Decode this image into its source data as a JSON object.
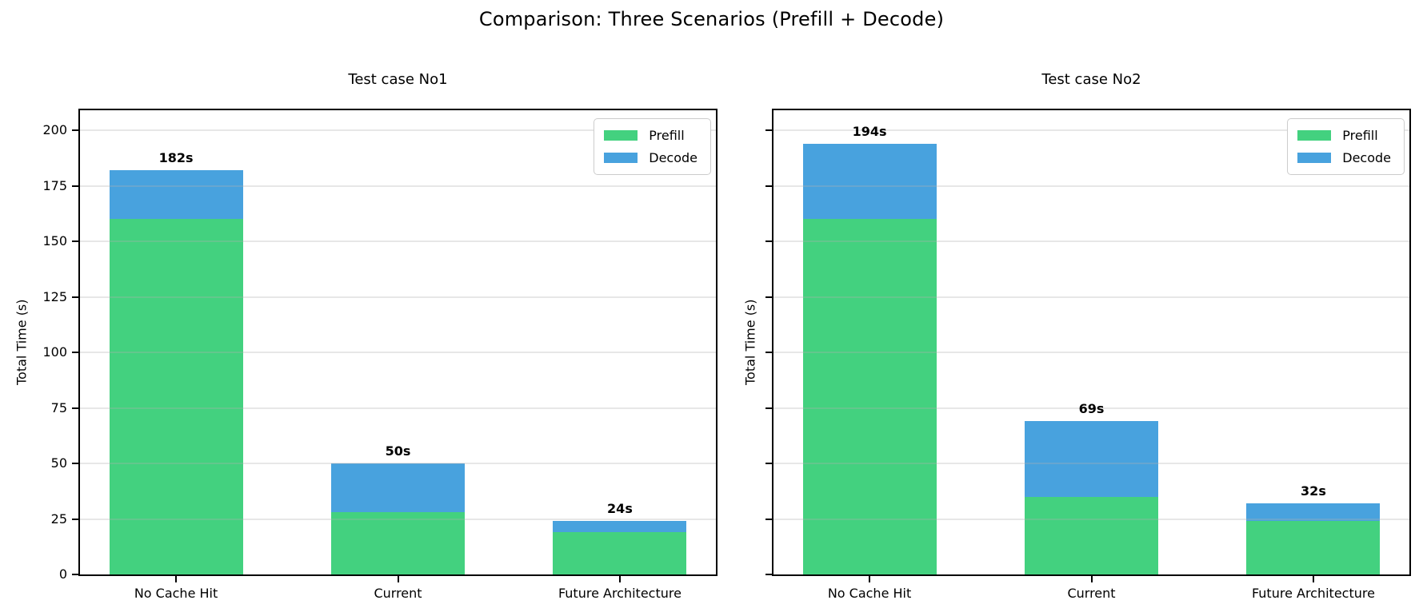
{
  "figure": {
    "title": "Comparison: Three Scenarios (Prefill + Decode)"
  },
  "colors": {
    "prefill": "#43d17f",
    "decode": "#48a2de",
    "grid": "rgba(176,176,176,0.30)",
    "spine": "#000000"
  },
  "chart_data": [
    {
      "type": "bar",
      "stacked": true,
      "title": "Test case No1",
      "ylabel": "Total Time (s)",
      "categories": [
        "No Cache Hit",
        "Current",
        "Future Architecture"
      ],
      "series": [
        {
          "name": "Prefill",
          "color": "#43d17f",
          "values": [
            160,
            28,
            19
          ]
        },
        {
          "name": "Decode",
          "color": "#48a2de",
          "values": [
            22,
            22,
            5
          ]
        }
      ],
      "bar_total_labels": [
        "182s",
        "50s",
        "24s"
      ],
      "ylim": [
        0,
        209
      ],
      "yticks": [
        0,
        25,
        50,
        75,
        100,
        125,
        150,
        175,
        200
      ],
      "ytick_labels": [
        "0",
        "25",
        "50",
        "75",
        "100",
        "125",
        "150",
        "175",
        "200"
      ],
      "show_ytick_labels": true,
      "grid": "horizontal-y",
      "legend_position": "upper-right",
      "legend_labels": [
        "Prefill",
        "Decode"
      ]
    },
    {
      "type": "bar",
      "stacked": true,
      "title": "Test case No2",
      "ylabel": "Total Time (s)",
      "categories": [
        "No Cache Hit",
        "Current",
        "Future Architecture"
      ],
      "series": [
        {
          "name": "Prefill",
          "color": "#43d17f",
          "values": [
            160,
            35,
            24
          ]
        },
        {
          "name": "Decode",
          "color": "#48a2de",
          "values": [
            34,
            34,
            8
          ]
        }
      ],
      "bar_total_labels": [
        "194s",
        "69s",
        "32s"
      ],
      "ylim": [
        0,
        209
      ],
      "yticks": [
        0,
        25,
        50,
        75,
        100,
        125,
        150,
        175,
        200
      ],
      "ytick_labels": [],
      "show_ytick_labels": false,
      "grid": "horizontal-y",
      "legend_position": "upper-right",
      "legend_labels": [
        "Prefill",
        "Decode"
      ]
    }
  ]
}
